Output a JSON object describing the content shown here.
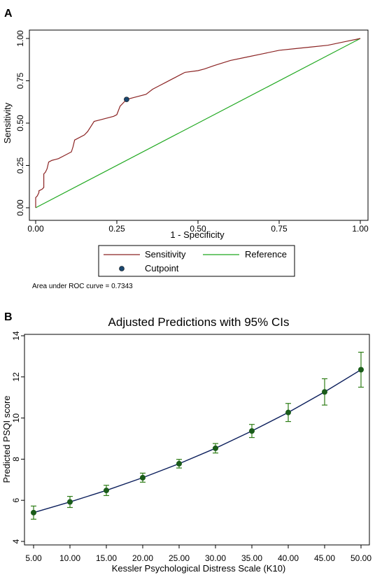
{
  "panel_a": {
    "letter": "A"
  },
  "panel_b": {
    "letter": "B"
  },
  "auc_note": "Area under ROC curve = 0.7343",
  "colors": {
    "roc": "#8b2323",
    "reference": "#1fa81f",
    "cutpoint": "#1a476f",
    "prediction_line": "#0c1f5c",
    "prediction_marker": "#1a5c1a",
    "ci": "#2e7d16"
  },
  "chart_data": [
    {
      "type": "line",
      "title": "",
      "xlabel": "1 - Specificity",
      "ylabel": "Sensitivity",
      "xlim": [
        0,
        1
      ],
      "ylim": [
        0,
        1
      ],
      "x_ticks": [
        "0.00",
        "0.25",
        "0.50",
        "0.75",
        "1.00"
      ],
      "y_ticks": [
        "0.00",
        "0.25",
        "0.50",
        "0.75",
        "1.00"
      ],
      "legend": {
        "placement": "bottom",
        "entries": [
          "Sensitivity",
          "Reference",
          "Cutpoint"
        ]
      },
      "series": [
        {
          "name": "Sensitivity",
          "x": [
            0.0,
            0.0,
            0.005,
            0.01,
            0.01,
            0.02,
            0.025,
            0.025,
            0.03,
            0.035,
            0.04,
            0.05,
            0.06,
            0.07,
            0.09,
            0.11,
            0.115,
            0.12,
            0.15,
            0.16,
            0.18,
            0.2,
            0.24,
            0.25,
            0.26,
            0.28,
            0.3,
            0.34,
            0.36,
            0.38,
            0.4,
            0.42,
            0.43,
            0.45,
            0.46,
            0.5,
            0.52,
            0.55,
            0.6,
            0.65,
            0.7,
            0.75,
            0.8,
            0.85,
            0.9,
            0.95,
            1.0
          ],
          "y": [
            0.0,
            0.06,
            0.07,
            0.09,
            0.1,
            0.11,
            0.12,
            0.2,
            0.21,
            0.23,
            0.27,
            0.28,
            0.285,
            0.29,
            0.31,
            0.33,
            0.36,
            0.4,
            0.43,
            0.45,
            0.51,
            0.52,
            0.54,
            0.55,
            0.6,
            0.64,
            0.65,
            0.67,
            0.7,
            0.72,
            0.74,
            0.76,
            0.77,
            0.79,
            0.8,
            0.81,
            0.82,
            0.84,
            0.87,
            0.89,
            0.91,
            0.93,
            0.94,
            0.95,
            0.96,
            0.98,
            1.0
          ]
        },
        {
          "name": "Reference",
          "x": [
            0,
            1
          ],
          "y": [
            0,
            1
          ]
        },
        {
          "name": "Cutpoint",
          "x": [
            0.28
          ],
          "y": [
            0.64
          ]
        }
      ]
    },
    {
      "type": "line",
      "title": "Adjusted Predictions with 95% CIs",
      "xlabel": "Kessler Psychological Distress Scale (K10)",
      "ylabel": "Predicted PSQI score",
      "xlim": [
        5,
        50
      ],
      "ylim": [
        4,
        14
      ],
      "x_ticks": [
        "5.00",
        "10.00",
        "15.00",
        "20.00",
        "25.00",
        "30.00",
        "35.00",
        "40.00",
        "45.00",
        "50.00"
      ],
      "y_ticks": [
        "4",
        "6",
        "8",
        "10",
        "12",
        "14"
      ],
      "x": [
        5,
        10,
        15,
        20,
        25,
        30,
        35,
        40,
        45,
        50
      ],
      "series": [
        {
          "y": [
            5.4,
            5.92,
            6.48,
            7.1,
            7.78,
            8.53,
            9.37,
            10.27,
            11.27,
            12.35
          ],
          "ci_low": [
            5.08,
            5.65,
            6.23,
            6.88,
            7.57,
            8.3,
            9.05,
            9.83,
            10.63,
            11.5
          ],
          "ci_high": [
            5.72,
            6.19,
            6.73,
            7.32,
            7.99,
            8.76,
            9.69,
            10.71,
            11.91,
            13.2
          ]
        }
      ]
    }
  ]
}
